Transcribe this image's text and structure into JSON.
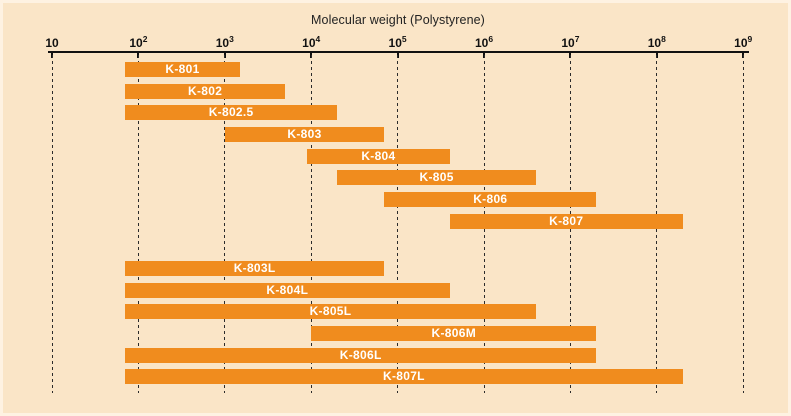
{
  "figure": {
    "background": "#FAE5C7",
    "edge_highlight": "#FEF5E6"
  },
  "chart_data": {
    "type": "bar",
    "variant": "horizontal-log-range-bars",
    "title": "Molecular weight (Polystyrene)",
    "legend": "none",
    "x_axis": {
      "scale": "log10",
      "base_label": "10",
      "tick_exponents": [
        1,
        2,
        3,
        4,
        5,
        6,
        7,
        8,
        9
      ],
      "range": [
        10,
        1000000000
      ],
      "gridlines": "dashed-vertical"
    },
    "bars": [
      {
        "label": "K-801",
        "mw_min": 70,
        "mw_max": 1500,
        "group": 1
      },
      {
        "label": "K-802",
        "mw_min": 70,
        "mw_max": 5000,
        "group": 1
      },
      {
        "label": "K-802.5",
        "mw_min": 70,
        "mw_max": 20000,
        "group": 1
      },
      {
        "label": "K-803",
        "mw_min": 1000,
        "mw_max": 70000,
        "group": 1
      },
      {
        "label": "K-804",
        "mw_min": 9000,
        "mw_max": 400000,
        "group": 1
      },
      {
        "label": "K-805",
        "mw_min": 20000,
        "mw_max": 4000000,
        "group": 1
      },
      {
        "label": "K-806",
        "mw_min": 70000,
        "mw_max": 20000000,
        "group": 1
      },
      {
        "label": "K-807",
        "mw_min": 400000,
        "mw_max": 200000000,
        "group": 1
      },
      {
        "label": "K-803L",
        "mw_min": 70,
        "mw_max": 70000,
        "group": 2
      },
      {
        "label": "K-804L",
        "mw_min": 70,
        "mw_max": 400000,
        "group": 2
      },
      {
        "label": "K-805L",
        "mw_min": 70,
        "mw_max": 4000000,
        "group": 2
      },
      {
        "label": "K-806M",
        "mw_min": 10000,
        "mw_max": 20000000,
        "group": 2
      },
      {
        "label": "K-806L",
        "mw_min": 70,
        "mw_max": 20000000,
        "group": 2
      },
      {
        "label": "K-807L",
        "mw_min": 70,
        "mw_max": 200000000,
        "group": 2
      }
    ],
    "colors": {
      "bar": "#F08C1E",
      "bar_label": "#FFFFFF",
      "axis": "#111111",
      "grid": "#2B2B2B",
      "text": "#222222"
    }
  }
}
